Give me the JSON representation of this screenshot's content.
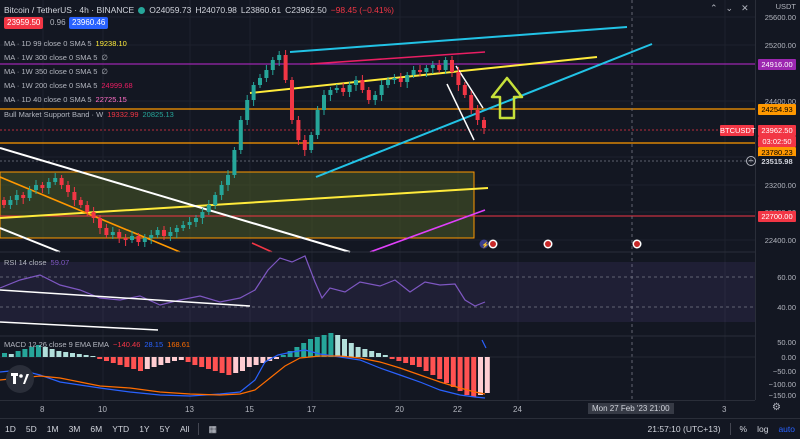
{
  "header": {
    "title": "Bitcoin / TetherUS · 4h · BINANCE",
    "o": "O24059.73",
    "h": "H24070.98",
    "l": "L23860.61",
    "c": "C23962.50",
    "change": "−98.45 (−0.41%)",
    "sell_price": "23959.50",
    "spread": "0.96",
    "buy_price": "23960.46"
  },
  "indicators": [
    {
      "label": "MA · 1D 99 close 0 SMA 5",
      "value": "19238.10",
      "color": "#ffeb3b"
    },
    {
      "label": "MA · 1W 300 close 0 SMA 5",
      "value": "∅",
      "color": "#b2b5be"
    },
    {
      "label": "MA · 1W 350 close 0 SMA 5",
      "value": "∅",
      "color": "#b2b5be"
    },
    {
      "label": "MA · 1W 200 close 0 SMA 5",
      "value": "24999.68",
      "color": "#e91e63"
    },
    {
      "label": "MA · 1D 40 close 0 SMA 5",
      "value": "22725.15",
      "color": "#ff6ec7"
    },
    {
      "label": "Bull Market Support Band · W",
      "value": "19332.99",
      "value2": "20825.13",
      "color": "#b2b5be"
    }
  ],
  "price_scale": {
    "unit": "USDT",
    "ticks": [
      "25600.00",
      "25200.00",
      "24400.00",
      "23200.00",
      "22800.00",
      "22400.00"
    ],
    "labels": [
      {
        "text": "24916.00",
        "bg": "#9c27b0",
        "fg": "#ffffff"
      },
      {
        "text": "24254.93",
        "bg": "#ff9800",
        "fg": "#000000"
      },
      {
        "text": "BTCUSDT",
        "bg": "#f23645",
        "fg": "#ffffff"
      },
      {
        "text": "23962.50",
        "bg": "#f23645",
        "fg": "#ffffff"
      },
      {
        "text": "03:02:50",
        "bg": "#f23645",
        "fg": "#ffffff"
      },
      {
        "text": "23780.23",
        "bg": "#ff9800",
        "fg": "#000000"
      },
      {
        "text": "23515.98",
        "bg": "#131722",
        "fg": "#d1d4dc"
      },
      {
        "text": "22700.00",
        "bg": "#f23645",
        "fg": "#ffffff"
      }
    ]
  },
  "rsi": {
    "label": "RSI 14 close",
    "value": "59.07",
    "ticks": [
      "60.00",
      "40.00"
    ]
  },
  "macd": {
    "label": "MACD 12 26 close 9 EMA EMA",
    "v1": "−140.46",
    "v2": "28.15",
    "v3": "168.61",
    "ticks": [
      "50.00",
      "0.00",
      "−50.00",
      "−100.00",
      "−150.00"
    ]
  },
  "x_axis": {
    "labels": [
      "8",
      "10",
      "13",
      "15",
      "17",
      "20",
      "22",
      "24",
      "3"
    ],
    "crosshair": "Mon 27 Feb '23 21:00"
  },
  "toolbar": {
    "ranges": [
      "1D",
      "5D",
      "1M",
      "3M",
      "6M",
      "YTD",
      "1Y",
      "5Y",
      "All"
    ],
    "time": "21:57:10 (UTC+13)",
    "percent": "%",
    "log": "log",
    "auto": "auto"
  },
  "colors": {
    "up": "#26a69a",
    "down": "#f23645",
    "bg": "#131722",
    "yellow_line": "#ffeb3b",
    "cyan_line": "#22c3e6",
    "orange_line": "#ff9800",
    "arrow": "#c6e03a"
  }
}
